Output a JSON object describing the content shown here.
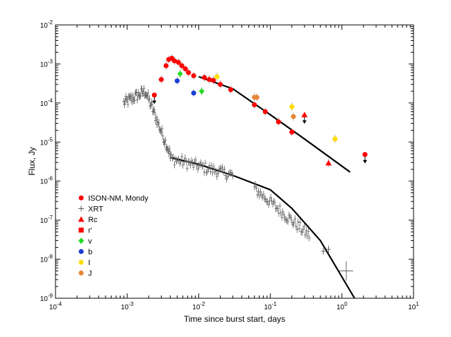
{
  "chart_data": {
    "type": "scatter",
    "title": "",
    "xlabel": "Time since burst start, days",
    "ylabel": "Flux, Jy",
    "xscale": "log",
    "yscale": "log",
    "xlim": [
      0.0001,
      10
    ],
    "ylim": [
      1e-09,
      0.01
    ],
    "x_ticks": [
      {
        "value": 0.0001,
        "base": "10",
        "exp": "-4"
      },
      {
        "value": 0.001,
        "base": "10",
        "exp": "-3"
      },
      {
        "value": 0.01,
        "base": "10",
        "exp": "-2"
      },
      {
        "value": 0.1,
        "base": "10",
        "exp": "-1"
      },
      {
        "value": 1,
        "base": "10",
        "exp": "0"
      },
      {
        "value": 10,
        "base": "10",
        "exp": "1"
      }
    ],
    "y_ticks": [
      {
        "value": 1e-09,
        "base": "10",
        "exp": "-9"
      },
      {
        "value": 1e-08,
        "base": "10",
        "exp": "-8"
      },
      {
        "value": 1e-07,
        "base": "10",
        "exp": "-7"
      },
      {
        "value": 1e-06,
        "base": "10",
        "exp": "-6"
      },
      {
        "value": 1e-05,
        "base": "10",
        "exp": "-5"
      },
      {
        "value": 0.0001,
        "base": "10",
        "exp": "-4"
      },
      {
        "value": 0.001,
        "base": "10",
        "exp": "-3"
      },
      {
        "value": 0.01,
        "base": "10",
        "exp": "-2"
      }
    ],
    "grid": false,
    "legend_position": "lower-left",
    "series": [
      {
        "name": "ISON-NM, Mondy",
        "marker": "circle",
        "color": "#ff0000",
        "points": [
          [
            0.003,
            0.0004
          ],
          [
            0.0035,
            0.0009
          ],
          [
            0.0038,
            0.0013
          ],
          [
            0.0042,
            0.0014
          ],
          [
            0.0046,
            0.0012
          ],
          [
            0.0052,
            0.0011
          ],
          [
            0.0058,
            0.0009
          ],
          [
            0.0065,
            0.00075
          ],
          [
            0.0072,
            0.0006
          ],
          [
            0.0085,
            0.0005
          ],
          [
            0.012,
            0.00045
          ],
          [
            0.014,
            0.0004
          ],
          [
            0.016,
            0.00038
          ],
          [
            0.02,
            0.0003
          ],
          [
            0.028,
            0.00022
          ],
          [
            0.06,
            9e-05
          ],
          [
            0.085,
            6e-05
          ],
          [
            0.13,
            3.3e-05
          ],
          [
            0.2,
            1.8e-05
          ]
        ],
        "upper_limits": [
          [
            0.0024,
            0.00016
          ],
          [
            2.1,
            4.8e-06
          ]
        ]
      },
      {
        "name": "XRT",
        "marker": "plus",
        "color": "#606060",
        "segments": [
          {
            "x0": 0.0009,
            "x1": 0.004,
            "y0": 0.0001,
            "y1": 5e-06,
            "peak_x": 0.0018,
            "peak_y": 0.0002,
            "n": 70
          },
          {
            "x0": 0.004,
            "x1": 0.03,
            "y0": 3.8e-06,
            "y1": 1.4e-06,
            "n": 60
          },
          {
            "x0": 0.06,
            "x1": 0.35,
            "y0": 6.5e-07,
            "y1": 4e-08,
            "n": 55
          }
        ],
        "error_points": [
          [
            0.55,
            1.6e-08
          ],
          [
            0.65,
            1.8e-08
          ],
          [
            1.15,
            5e-09
          ]
        ]
      },
      {
        "name": "Rc",
        "marker": "triangle",
        "color": "#ff0000",
        "points": [
          [
            0.65,
            2.9e-06
          ]
        ],
        "upper_limits": [
          [
            0.3,
            5e-05
          ]
        ]
      },
      {
        "name": "r'",
        "marker": "square",
        "color": "#ff0000",
        "points": []
      },
      {
        "name": "v",
        "marker": "diamond",
        "color": "#22dd22",
        "points": [
          [
            0.0055,
            0.00056
          ],
          [
            0.011,
            0.0002
          ]
        ]
      },
      {
        "name": "b",
        "marker": "circle",
        "color": "#1a3fd6",
        "points": [
          [
            0.005,
            0.00037
          ],
          [
            0.0085,
            0.00018
          ]
        ]
      },
      {
        "name": "I",
        "marker": "circle",
        "color": "#ffdd00",
        "points": [
          [
            0.018,
            0.00047
          ],
          [
            0.2,
            8e-05
          ],
          [
            0.8,
            1.2e-05
          ]
        ]
      },
      {
        "name": "J",
        "marker": "circle",
        "color": "#e8873a",
        "points": [
          [
            0.06,
            0.00014
          ],
          [
            0.065,
            0.00014
          ],
          [
            0.21,
            4.5e-05
          ]
        ]
      }
    ],
    "model_lines": [
      {
        "name": "optical fit",
        "color": "#000000",
        "points": [
          [
            0.01,
            0.00047
          ],
          [
            0.03,
            0.00023
          ],
          [
            0.1,
            5e-05
          ],
          [
            0.3,
            1.2e-05
          ],
          [
            1.3,
            1.7e-06
          ]
        ]
      },
      {
        "name": "x-ray fit",
        "color": "#000000",
        "points": [
          [
            0.004,
            4e-06
          ],
          [
            0.01,
            2.7e-06
          ],
          [
            0.03,
            1.4e-06
          ],
          [
            0.1,
            6e-07
          ],
          [
            0.2,
            2e-07
          ],
          [
            0.5,
            3e-08
          ],
          [
            1.5,
            1e-09
          ]
        ]
      }
    ]
  }
}
